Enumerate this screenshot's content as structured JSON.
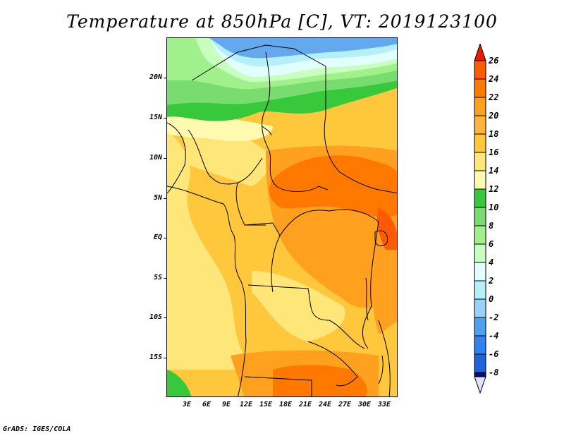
{
  "title": "Temperature at 850hPa [C], VT: 2019123100",
  "credit": "GrADS: IGES/COLA",
  "axes": {
    "lat_labels": [
      "20N",
      "15N",
      "10N",
      "5N",
      "EQ",
      "5S",
      "10S",
      "15S"
    ],
    "lon_labels": [
      "3E",
      "6E",
      "9E",
      "12E",
      "15E",
      "18E",
      "21E",
      "24E",
      "27E",
      "30E",
      "33E"
    ]
  },
  "colorbar": {
    "labels": [
      "26",
      "24",
      "22",
      "20",
      "18",
      "16",
      "14",
      "12",
      "10",
      "8",
      "6",
      "4",
      "2",
      "0",
      "-2",
      "-4",
      "-6",
      "-8"
    ],
    "colors": [
      "#e0e0ff",
      "#0a0a7a",
      "#1446c8",
      "#1e64dc",
      "#3282f0",
      "#50a0f0",
      "#96d2fa",
      "#b4f0fa",
      "#e1ffff",
      "#c8ffbe",
      "#a0f08c",
      "#78dc6e",
      "#37c83c",
      "#fffab0",
      "#ffe678",
      "#ffc83c",
      "#ffa01e",
      "#ff7800",
      "#ff5a00",
      "#e61e00"
    ]
  },
  "colors": {
    "cold_blue": "#64a8f0",
    "mid_blue": "#96d2fa",
    "ice": "#e1ffff",
    "green_dark": "#37c83c",
    "green_mid": "#78dc6e",
    "green_light": "#a0f08c",
    "yellow": "#ffe678",
    "orange_light": "#ffc83c",
    "orange": "#ffa01e",
    "orange_deep": "#ff7800"
  }
}
